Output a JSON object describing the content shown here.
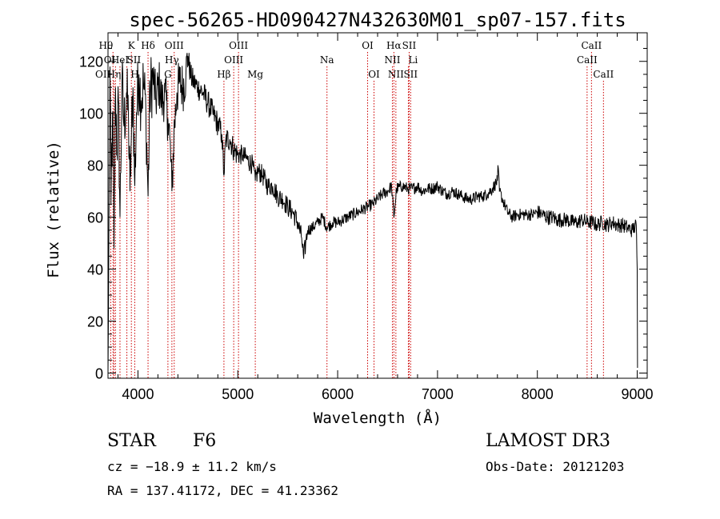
{
  "chart_data": {
    "type": "line",
    "title": "spec-56265-HD090427N432630M01_sp07-157.fits",
    "xlabel": "Wavelength (Å)",
    "ylabel": "Flux (relative)",
    "xlim": [
      3700,
      9100
    ],
    "ylim": [
      -2,
      131
    ],
    "xticks": [
      "4000",
      "5000",
      "6000",
      "7000",
      "8000",
      "9000"
    ],
    "yticks": [
      "0",
      "20",
      "40",
      "60",
      "80",
      "100",
      "120"
    ],
    "grid": false,
    "series": [
      {
        "anchors": [
          [
            3700,
            0
          ],
          [
            3705,
            25
          ],
          [
            3712,
            75
          ],
          [
            3720,
            118
          ],
          [
            3730,
            65
          ],
          [
            3745,
            100
          ],
          [
            3760,
            48
          ],
          [
            3775,
            110
          ],
          [
            3790,
            85
          ],
          [
            3805,
            105
          ],
          [
            3820,
            60
          ],
          [
            3840,
            112
          ],
          [
            3860,
            95
          ],
          [
            3885,
            108
          ],
          [
            3905,
            98
          ],
          [
            3920,
            70
          ],
          [
            3935,
            92
          ],
          [
            3950,
            110
          ],
          [
            3968,
            72
          ],
          [
            3985,
            100
          ],
          [
            4010,
            115
          ],
          [
            4030,
            105
          ],
          [
            4055,
            112
          ],
          [
            4080,
            100
          ],
          [
            4101,
            68
          ],
          [
            4120,
            108
          ],
          [
            4150,
            114
          ],
          [
            4180,
            105
          ],
          [
            4210,
            112
          ],
          [
            4240,
            104
          ],
          [
            4270,
            108
          ],
          [
            4300,
            98
          ],
          [
            4320,
            90
          ],
          [
            4340,
            70
          ],
          [
            4360,
            92
          ],
          [
            4390,
            108
          ],
          [
            4420,
            112
          ],
          [
            4450,
            110
          ],
          [
            4480,
            115
          ],
          [
            4500,
            122
          ],
          [
            4530,
            114
          ],
          [
            4560,
            112
          ],
          [
            4600,
            110
          ],
          [
            4650,
            108
          ],
          [
            4700,
            104
          ],
          [
            4750,
            100
          ],
          [
            4800,
            96
          ],
          [
            4840,
            92
          ],
          [
            4861,
            76
          ],
          [
            4880,
            90
          ],
          [
            4920,
            90
          ],
          [
            4960,
            86
          ],
          [
            5000,
            84
          ],
          [
            5050,
            84
          ],
          [
            5100,
            82
          ],
          [
            5150,
            80
          ],
          [
            5175,
            74
          ],
          [
            5200,
            78
          ],
          [
            5250,
            76
          ],
          [
            5300,
            72
          ],
          [
            5350,
            72
          ],
          [
            5400,
            68
          ],
          [
            5450,
            67
          ],
          [
            5500,
            64
          ],
          [
            5550,
            62
          ],
          [
            5600,
            58
          ],
          [
            5640,
            52
          ],
          [
            5660,
            44
          ],
          [
            5680,
            50
          ],
          [
            5700,
            55
          ],
          [
            5750,
            56
          ],
          [
            5800,
            58
          ],
          [
            5850,
            60
          ],
          [
            5893,
            56
          ],
          [
            5950,
            58
          ],
          [
            6000,
            58
          ],
          [
            6050,
            59
          ],
          [
            6100,
            60
          ],
          [
            6150,
            61
          ],
          [
            6200,
            62
          ],
          [
            6250,
            63
          ],
          [
            6300,
            64
          ],
          [
            6350,
            65
          ],
          [
            6400,
            67
          ],
          [
            6450,
            69
          ],
          [
            6500,
            70
          ],
          [
            6540,
            72
          ],
          [
            6563,
            60
          ],
          [
            6590,
            71
          ],
          [
            6650,
            72
          ],
          [
            6700,
            71
          ],
          [
            6750,
            71
          ],
          [
            6800,
            72
          ],
          [
            6850,
            70
          ],
          [
            6900,
            71
          ],
          [
            6950,
            71
          ],
          [
            7000,
            72
          ],
          [
            7050,
            70
          ],
          [
            7100,
            69
          ],
          [
            7150,
            70
          ],
          [
            7200,
            69
          ],
          [
            7250,
            68
          ],
          [
            7300,
            67
          ],
          [
            7350,
            67
          ],
          [
            7400,
            68
          ],
          [
            7450,
            68
          ],
          [
            7500,
            69
          ],
          [
            7550,
            71
          ],
          [
            7600,
            74
          ],
          [
            7605,
            80
          ],
          [
            7620,
            70
          ],
          [
            7650,
            67
          ],
          [
            7700,
            62
          ],
          [
            7750,
            60
          ],
          [
            7800,
            61
          ],
          [
            7850,
            61
          ],
          [
            7900,
            61
          ],
          [
            7950,
            61
          ],
          [
            8000,
            62
          ],
          [
            8050,
            61
          ],
          [
            8100,
            60
          ],
          [
            8150,
            60
          ],
          [
            8200,
            59
          ],
          [
            8250,
            59
          ],
          [
            8300,
            59
          ],
          [
            8350,
            58
          ],
          [
            8400,
            58
          ],
          [
            8450,
            59
          ],
          [
            8500,
            58
          ],
          [
            8550,
            58
          ],
          [
            8600,
            57
          ],
          [
            8650,
            58
          ],
          [
            8700,
            57
          ],
          [
            8750,
            58
          ],
          [
            8800,
            57
          ],
          [
            8850,
            57
          ],
          [
            8900,
            56
          ],
          [
            8950,
            55
          ],
          [
            8990,
            57
          ],
          [
            9000,
            40
          ],
          [
            9003,
            2
          ]
        ]
      }
    ],
    "lines": [
      {
        "wl": 3727,
        "label": "OII",
        "row": 2,
        "align": "end"
      },
      {
        "wl": 3750,
        "label": "Hθ",
        "row": 0,
        "align": "end"
      },
      {
        "wl": 3760,
        "label": "Hη",
        "row": 2,
        "align": "middle"
      },
      {
        "wl": 3775,
        "label": "OI",
        "row": 1,
        "align": "end"
      },
      {
        "wl": 3820,
        "label": "HeI",
        "row": 1,
        "align": "middle"
      },
      {
        "wl": 3889,
        "label": "SII",
        "row": 1,
        "align": "start"
      },
      {
        "wl": 3934,
        "label": "K",
        "row": 0,
        "align": "middle"
      },
      {
        "wl": 3968,
        "label": "H",
        "row": 2,
        "align": "middle"
      },
      {
        "wl": 4101,
        "label": "Hδ",
        "row": 0,
        "align": "middle"
      },
      {
        "wl": 4300,
        "label": "G",
        "row": 2,
        "align": "middle"
      },
      {
        "wl": 4340,
        "label": "Hγ",
        "row": 1,
        "align": "middle"
      },
      {
        "wl": 4363,
        "label": "OIII",
        "row": 0,
        "align": "middle"
      },
      {
        "wl": 4861,
        "label": "Hβ",
        "row": 2,
        "align": "middle"
      },
      {
        "wl": 4959,
        "label": "OIII",
        "row": 1,
        "align": "middle"
      },
      {
        "wl": 5007,
        "label": "OIII",
        "row": 0,
        "align": "middle"
      },
      {
        "wl": 5175,
        "label": "Mg",
        "row": 2,
        "align": "middle"
      },
      {
        "wl": 5893,
        "label": "Na",
        "row": 1,
        "align": "middle"
      },
      {
        "wl": 6300,
        "label": "OI",
        "row": 0,
        "align": "middle"
      },
      {
        "wl": 6364,
        "label": "OI",
        "row": 2,
        "align": "middle"
      },
      {
        "wl": 6548,
        "label": "NII",
        "row": 1,
        "align": "middle"
      },
      {
        "wl": 6563,
        "label": "Hα",
        "row": 0,
        "align": "middle"
      },
      {
        "wl": 6583,
        "label": "NII",
        "row": 2,
        "align": "middle"
      },
      {
        "wl": 6708,
        "label": "Li",
        "row": 1,
        "align": "start"
      },
      {
        "wl": 6716,
        "label": "SII",
        "row": 0,
        "align": "middle"
      },
      {
        "wl": 6731,
        "label": "SII",
        "row": 2,
        "align": "middle"
      },
      {
        "wl": 8498,
        "label": "CaII",
        "row": 1,
        "align": "middle"
      },
      {
        "wl": 8542,
        "label": "CaII",
        "row": 0,
        "align": "middle"
      },
      {
        "wl": 8662,
        "label": "CaII",
        "row": 2,
        "align": "middle"
      }
    ],
    "colors": {
      "line_marker": "#cc0000",
      "spectrum": "#000000"
    }
  },
  "footer": {
    "object_class": "STAR",
    "subclass": "F6",
    "survey": "LAMOST DR3",
    "cz": "cz = −18.9 ± 11.2 km/s",
    "obs_date": "Obs-Date: 20121203",
    "coords": "RA = 137.41172, DEC =  41.23362"
  }
}
